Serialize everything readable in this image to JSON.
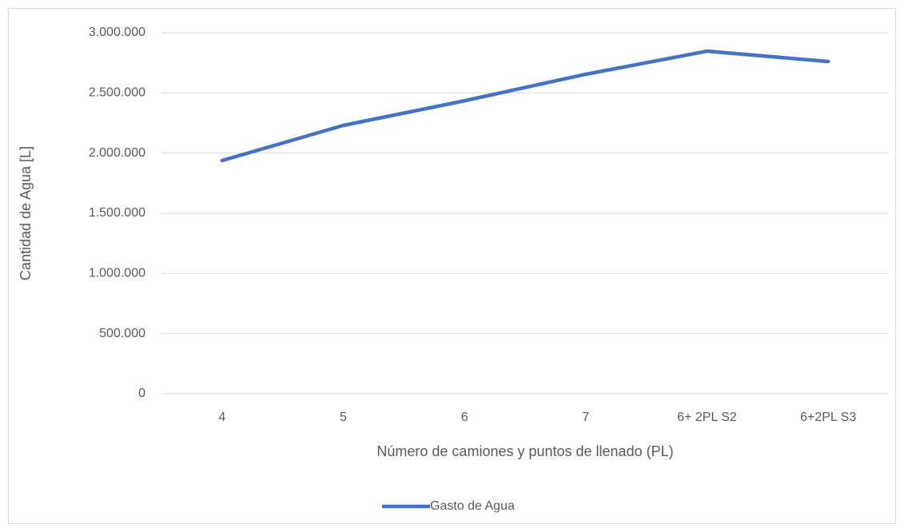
{
  "chart_data": {
    "type": "line",
    "x_label": "Número de camiones y puntos de llenado (PL)",
    "y_label": "Cantidad de Agua [L]",
    "categories": [
      "4",
      "5",
      "6",
      "7",
      "6+ 2PL S2",
      "6+2PL S3"
    ],
    "series": [
      {
        "name": "Gasto de Agua",
        "color": "#4472c4",
        "values": [
          1938000,
          2230000,
          2435000,
          2655000,
          2847000,
          2761000
        ]
      }
    ],
    "ylim": [
      0,
      3000000
    ],
    "yticks": [
      0,
      {
        "value": 500000,
        "label": "500.000"
      },
      {
        "value": 1000000,
        "label": "1.000.000"
      },
      {
        "value": 1500000,
        "label": "1.500.000"
      },
      {
        "value": 2000000,
        "label": "2.000.000"
      },
      {
        "value": 2500000,
        "label": "2.500.000"
      },
      {
        "value": 3000000,
        "label": "3.000.000"
      }
    ],
    "grid": true,
    "legend": "bottom"
  }
}
